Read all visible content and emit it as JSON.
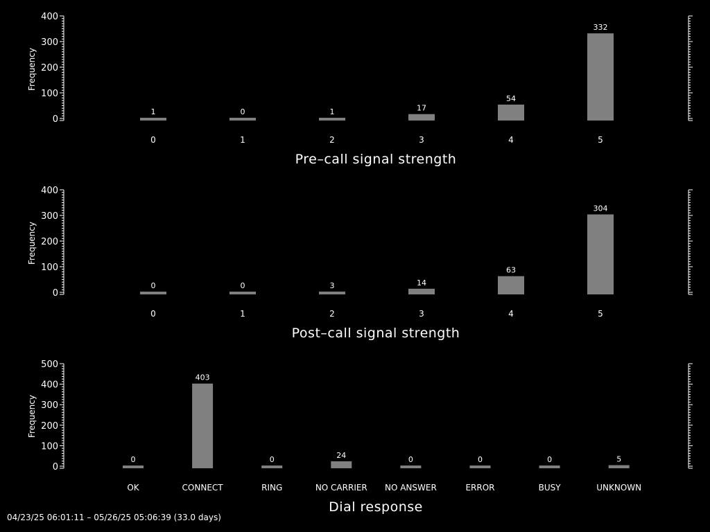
{
  "footer": {
    "text": "04/23/25 06:01:11 – 05/26/25 05:06:39 (33.0 days)"
  },
  "colors": {
    "background": "#000000",
    "foreground": "#ffffff",
    "bar": "#808080"
  },
  "chart_data": [
    {
      "type": "bar",
      "categories": [
        "0",
        "1",
        "2",
        "3",
        "4",
        "5"
      ],
      "values": [
        1,
        0,
        1,
        17,
        54,
        332
      ],
      "title": "",
      "xlabel": "Pre–call signal strength",
      "ylabel": "Frequency",
      "yticks": [
        0,
        100,
        200,
        300,
        400
      ],
      "ylim": [
        0,
        400
      ],
      "grid": false
    },
    {
      "type": "bar",
      "categories": [
        "0",
        "1",
        "2",
        "3",
        "4",
        "5"
      ],
      "values": [
        0,
        0,
        3,
        14,
        63,
        304
      ],
      "title": "",
      "xlabel": "Post–call signal strength",
      "ylabel": "Frequency",
      "yticks": [
        0,
        100,
        200,
        300,
        400
      ],
      "ylim": [
        0,
        400
      ],
      "grid": false
    },
    {
      "type": "bar",
      "categories": [
        "OK",
        "CONNECT",
        "RING",
        "NO CARRIER",
        "NO ANSWER",
        "ERROR",
        "BUSY",
        "UNKNOWN"
      ],
      "values": [
        0,
        403,
        0,
        24,
        0,
        0,
        0,
        5
      ],
      "title": "",
      "xlabel": "Dial response",
      "ylabel": "Frequency",
      "yticks": [
        0,
        100,
        200,
        300,
        400,
        500
      ],
      "ylim": [
        0,
        500
      ],
      "grid": false
    }
  ]
}
